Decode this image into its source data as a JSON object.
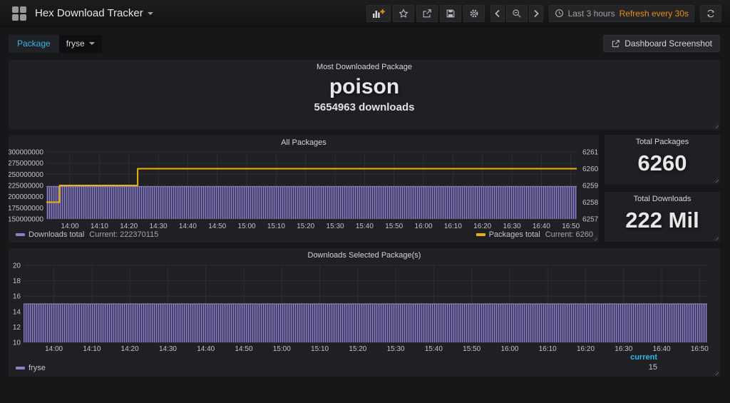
{
  "navbar": {
    "title": "Hex Download Tracker",
    "time_range": "Last 3 hours",
    "refresh_text": "Refresh every 30s",
    "icons": [
      "dashboard-grid",
      "add-panel",
      "star",
      "share",
      "save",
      "settings",
      "chevron-left",
      "zoom-out",
      "chevron-right",
      "clock",
      "refresh"
    ]
  },
  "submenu": {
    "variable_label": "Package",
    "variable_value": "fryse",
    "screenshot_button": "Dashboard Screenshot"
  },
  "panels": {
    "most_downloaded": {
      "title": "Most Downloaded Package",
      "value": "poison",
      "subtitle": "5654963 downloads"
    },
    "total_packages": {
      "title": "Total Packages",
      "value": "6260"
    },
    "total_downloads": {
      "title": "Total Downloads",
      "value": "222 Mil"
    }
  },
  "colors": {
    "accent_cyan": "#33b5e5",
    "refresh_orange": "#eb8b18",
    "series_purple": "#8c80c7",
    "series_yellow": "#ecb00c",
    "panel_bg": "#1f2023",
    "page_bg": "#161719"
  },
  "chart_data": [
    {
      "id": "all-packages",
      "type": "area-line",
      "title": "All Packages",
      "x_range": [
        832,
        1012
      ],
      "x_ticks": [
        {
          "t": 840,
          "label": "14:00"
        },
        {
          "t": 850,
          "label": "14:10"
        },
        {
          "t": 860,
          "label": "14:20"
        },
        {
          "t": 870,
          "label": "14:30"
        },
        {
          "t": 880,
          "label": "14:40"
        },
        {
          "t": 890,
          "label": "14:50"
        },
        {
          "t": 900,
          "label": "15:00"
        },
        {
          "t": 910,
          "label": "15:10"
        },
        {
          "t": 920,
          "label": "15:20"
        },
        {
          "t": 930,
          "label": "15:30"
        },
        {
          "t": 940,
          "label": "15:40"
        },
        {
          "t": 950,
          "label": "15:50"
        },
        {
          "t": 960,
          "label": "16:00"
        },
        {
          "t": 970,
          "label": "16:10"
        },
        {
          "t": 980,
          "label": "16:20"
        },
        {
          "t": 990,
          "label": "16:30"
        },
        {
          "t": 1000,
          "label": "16:40"
        },
        {
          "t": 1010,
          "label": "16:50"
        }
      ],
      "left_axis": {
        "min": 150000000,
        "max": 300000000,
        "ticks": [
          {
            "v": 300000000,
            "label": "300000000"
          },
          {
            "v": 275000000,
            "label": "275000000"
          },
          {
            "v": 250000000,
            "label": "250000000"
          },
          {
            "v": 225000000,
            "label": "225000000"
          },
          {
            "v": 200000000,
            "label": "200000000"
          },
          {
            "v": 175000000,
            "label": "175000000"
          },
          {
            "v": 150000000,
            "label": "150000000"
          }
        ]
      },
      "right_axis": {
        "min": 6257,
        "max": 6261,
        "ticks": [
          {
            "v": 6261,
            "label": "6261"
          },
          {
            "v": 6260,
            "label": "6260"
          },
          {
            "v": 6259,
            "label": "6259"
          },
          {
            "v": 6258,
            "label": "6258"
          },
          {
            "v": 6257,
            "label": "6257"
          }
        ]
      },
      "series": [
        {
          "name": "Downloads total",
          "type": "area",
          "axis": "left",
          "current": 222370115,
          "points": [
            [
              832,
              222370115
            ],
            [
              1012,
              222370115
            ]
          ],
          "legend_label": "Downloads total",
          "legend_value": "Current: 222370115"
        },
        {
          "name": "Packages total",
          "type": "line",
          "axis": "right",
          "current": 6260,
          "points": [
            [
              832,
              6258
            ],
            [
              836.5,
              6258
            ],
            [
              836.5,
              6259
            ],
            [
              863,
              6259
            ],
            [
              863,
              6260
            ],
            [
              1012,
              6260
            ]
          ],
          "legend_label": "Packages total",
          "legend_value": "Current: 6260"
        }
      ]
    },
    {
      "id": "downloads-selected",
      "type": "area",
      "title": "Downloads Selected Package(s)",
      "x_range": [
        832,
        1012
      ],
      "x_ticks": [
        {
          "t": 840,
          "label": "14:00"
        },
        {
          "t": 850,
          "label": "14:10"
        },
        {
          "t": 860,
          "label": "14:20"
        },
        {
          "t": 870,
          "label": "14:30"
        },
        {
          "t": 880,
          "label": "14:40"
        },
        {
          "t": 890,
          "label": "14:50"
        },
        {
          "t": 900,
          "label": "15:00"
        },
        {
          "t": 910,
          "label": "15:10"
        },
        {
          "t": 920,
          "label": "15:20"
        },
        {
          "t": 930,
          "label": "15:30"
        },
        {
          "t": 940,
          "label": "15:40"
        },
        {
          "t": 950,
          "label": "15:50"
        },
        {
          "t": 960,
          "label": "16:00"
        },
        {
          "t": 970,
          "label": "16:10"
        },
        {
          "t": 980,
          "label": "16:20"
        },
        {
          "t": 990,
          "label": "16:30"
        },
        {
          "t": 1000,
          "label": "16:40"
        },
        {
          "t": 1010,
          "label": "16:50"
        }
      ],
      "left_axis": {
        "min": 10,
        "max": 20,
        "ticks": [
          {
            "v": 20,
            "label": "20"
          },
          {
            "v": 18,
            "label": "18"
          },
          {
            "v": 16,
            "label": "16"
          },
          {
            "v": 14,
            "label": "14"
          },
          {
            "v": 12,
            "label": "12"
          },
          {
            "v": 10,
            "label": "10"
          }
        ]
      },
      "series": [
        {
          "name": "fryse",
          "type": "area",
          "axis": "left",
          "current": 15,
          "points": [
            [
              832,
              15
            ],
            [
              1012,
              15
            ]
          ]
        }
      ],
      "legend": {
        "name": "fryse",
        "column_header": "current",
        "value": "15"
      }
    }
  ]
}
